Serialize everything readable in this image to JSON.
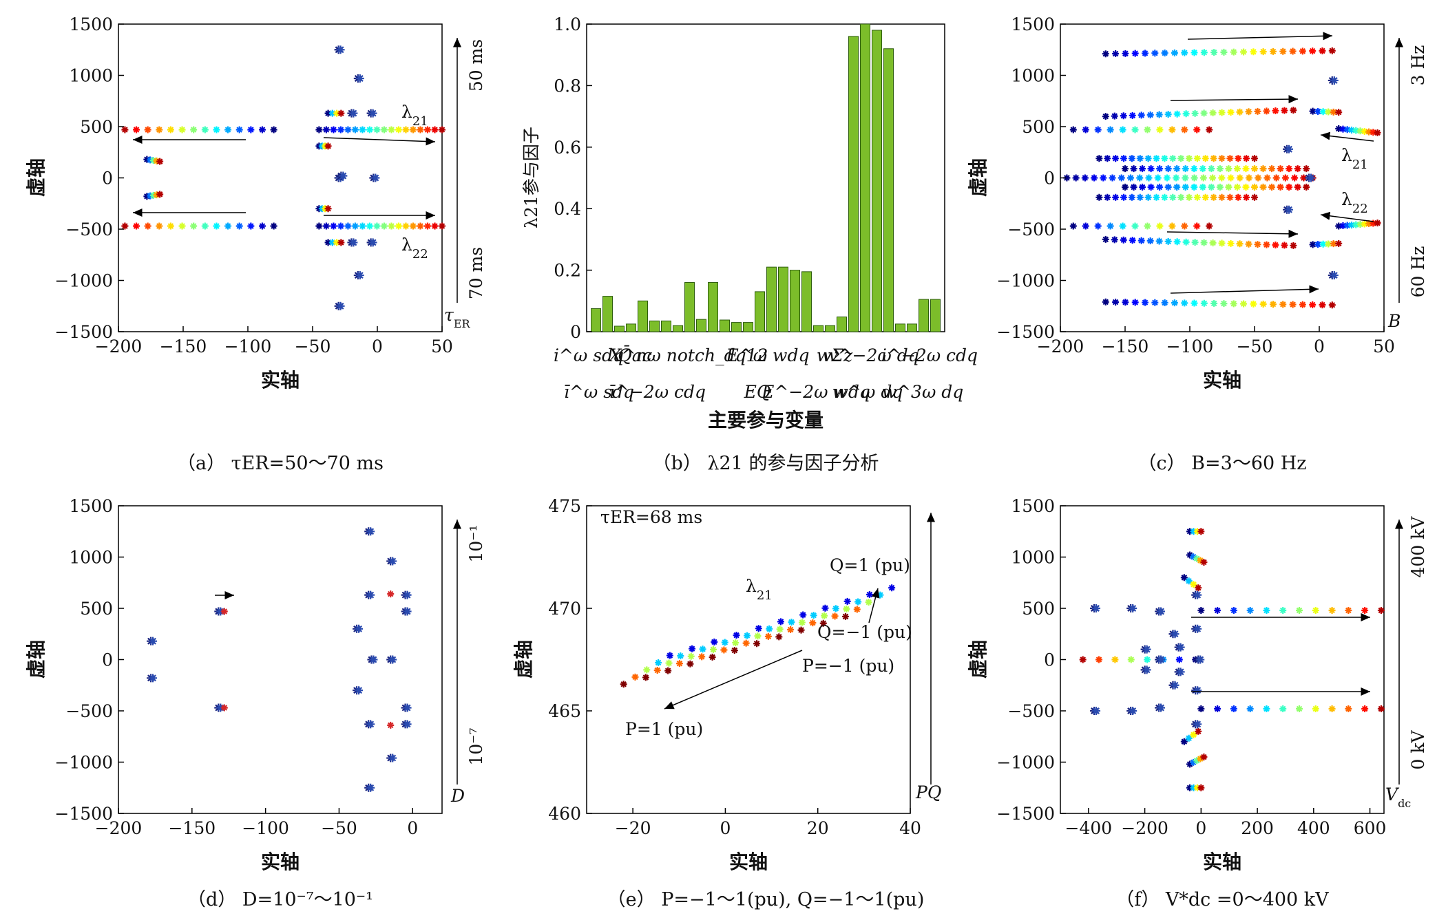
{
  "captions": {
    "a": "（a） τER=50～70 ms",
    "b": "（b） λ21 的参与因子分析",
    "c": "（c） B=3～60 Hz",
    "d": "（d） D=10⁻⁷～10⁻¹",
    "e": "（e） P=−1～1(pu), Q=−1～1(pu)",
    "f": "（f） V*dc =0～400 kV"
  },
  "colors": {
    "low": "#1a237e",
    "high": "#d62728",
    "bar": "#7cbd2a",
    "bar_edge": "#2e5e0e"
  },
  "chart_data": [
    {
      "id": "a",
      "type": "scatter",
      "xlabel": "实轴",
      "ylabel": "虚轴",
      "xlim": [
        -200,
        50
      ],
      "ylim": [
        -1500,
        1500
      ],
      "xticks": [
        "−200",
        "−150",
        "−100",
        "−50",
        "0",
        "50"
      ],
      "yticks": [
        "1500",
        "1000",
        "500",
        "0",
        "−500",
        "−1000",
        "−1500"
      ],
      "side_top": "50 ms",
      "side_bottom": "70 ms",
      "side_end": "τER",
      "annotations": [
        "λ21",
        "λ22"
      ],
      "sweeps": [
        {
          "from": [
            -80,
            470
          ],
          "to": [
            -195,
            470
          ],
          "n": 14
        },
        {
          "from": [
            -80,
            -470
          ],
          "to": [
            -195,
            -470
          ],
          "n": 14
        },
        {
          "from": [
            -45,
            470
          ],
          "to": [
            50,
            470
          ],
          "n": 18
        },
        {
          "from": [
            -45,
            -470
          ],
          "to": [
            50,
            -470
          ],
          "n": 18
        },
        {
          "from": [
            -178,
            180
          ],
          "to": [
            -168,
            160
          ],
          "n": 5
        },
        {
          "from": [
            -178,
            -180
          ],
          "to": [
            -168,
            -160
          ],
          "n": 5
        },
        {
          "from": [
            -45,
            310
          ],
          "to": [
            -38,
            310
          ],
          "n": 4
        },
        {
          "from": [
            -45,
            -300
          ],
          "to": [
            -38,
            -300
          ],
          "n": 4
        },
        {
          "from": [
            -38,
            630
          ],
          "to": [
            -28,
            630
          ],
          "n": 4
        },
        {
          "from": [
            -38,
            -630
          ],
          "to": [
            -28,
            -630
          ],
          "n": 4
        }
      ],
      "dots": [
        [
          -30,
          1250
        ],
        [
          -30,
          -1250
        ],
        [
          -15,
          970
        ],
        [
          -15,
          -950
        ],
        [
          -30,
          0
        ],
        [
          -28,
          20
        ],
        [
          -3,
          0
        ],
        [
          -5,
          630
        ],
        [
          -5,
          -630
        ],
        [
          -20,
          630
        ],
        [
          -20,
          -630
        ]
      ]
    },
    {
      "id": "b",
      "type": "bar",
      "ylabel": "λ21参与因子",
      "xlabel": "主要参与变量",
      "ylim": [
        0,
        1
      ],
      "yticks": [
        "0",
        "0.2",
        "0.4",
        "0.6",
        "0.8",
        "1.0"
      ],
      "values": [
        0.075,
        0.115,
        0.018,
        0.025,
        0.1,
        0.035,
        0.035,
        0.02,
        0.16,
        0.04,
        0.16,
        0.038,
        0.03,
        0.03,
        0.13,
        0.21,
        0.21,
        0.2,
        0.195,
        0.02,
        0.02,
        0.048,
        0.96,
        1.0,
        0.98,
        0.92,
        0.025,
        0.025,
        0.105,
        0.105
      ],
      "labels_row1": [
        "i^ω sdq",
        "Q̄ac",
        "X^nω notch_dq12",
        "E^ω wdq",
        "wΣz",
        "w^−2ω dq",
        "i^−2ω cdq"
      ],
      "labels_row2": [
        "ī^ω sdq",
        "ī^−2ω cdq",
        "EQ",
        "E^−2ω wdq",
        "w^ω dq",
        "w^3ω dq"
      ]
    },
    {
      "id": "c",
      "type": "scatter",
      "xlabel": "实轴",
      "ylabel": "虚轴",
      "xlim": [
        -200,
        50
      ],
      "ylim": [
        -1500,
        1500
      ],
      "xticks": [
        "−200",
        "−150",
        "−100",
        "−50",
        "0",
        "50"
      ],
      "yticks": [
        "1500",
        "1000",
        "500",
        "0",
        "−500",
        "−1000",
        "−1500"
      ],
      "side_top": "3 Hz",
      "side_bottom": "60 Hz",
      "side_end": "B",
      "annotations": [
        "λ21",
        "λ22"
      ],
      "sweeps": [
        {
          "from": [
            -165,
            1210
          ],
          "to": [
            10,
            1240
          ],
          "n": 24
        },
        {
          "from": [
            -165,
            -1210
          ],
          "to": [
            10,
            -1240
          ],
          "n": 24
        },
        {
          "from": [
            -165,
            600
          ],
          "to": [
            -20,
            660
          ],
          "n": 22
        },
        {
          "from": [
            -165,
            -600
          ],
          "to": [
            -20,
            -660
          ],
          "n": 22
        },
        {
          "from": [
            -190,
            470
          ],
          "to": [
            -85,
            470
          ],
          "n": 12
        },
        {
          "from": [
            -190,
            -470
          ],
          "to": [
            -85,
            -470
          ],
          "n": 12
        },
        {
          "from": [
            -170,
            190
          ],
          "to": [
            -50,
            190
          ],
          "n": 20
        },
        {
          "from": [
            -170,
            -190
          ],
          "to": [
            -50,
            -190
          ],
          "n": 20
        },
        {
          "from": [
            -150,
            90
          ],
          "to": [
            -10,
            90
          ],
          "n": 22
        },
        {
          "from": [
            -150,
            -90
          ],
          "to": [
            -10,
            -90
          ],
          "n": 22
        },
        {
          "from": [
            -195,
            0
          ],
          "to": [
            -5,
            0
          ],
          "n": 28
        },
        {
          "from": [
            -5,
            650
          ],
          "to": [
            15,
            640
          ],
          "n": 6
        },
        {
          "from": [
            -5,
            -650
          ],
          "to": [
            15,
            -640
          ],
          "n": 6
        },
        {
          "from": [
            15,
            480
          ],
          "to": [
            45,
            440
          ],
          "n": 10
        },
        {
          "from": [
            15,
            -470
          ],
          "to": [
            45,
            -440
          ],
          "n": 10
        }
      ],
      "dots": [
        [
          -25,
          280
        ],
        [
          -25,
          -310
        ],
        [
          10,
          950
        ],
        [
          10,
          -950
        ],
        [
          -8,
          0
        ]
      ]
    },
    {
      "id": "d",
      "type": "scatter",
      "xlabel": "实轴",
      "ylabel": "虚轴",
      "xlim": [
        -200,
        20
      ],
      "ylim": [
        -1500,
        1500
      ],
      "xticks": [
        "−200",
        "−150",
        "−100",
        "−50",
        "0"
      ],
      "yticks": [
        "1500",
        "1000",
        "500",
        "0",
        "−500",
        "−1000",
        "−1500"
      ],
      "side_top": "10⁻¹",
      "side_bottom": "10⁻⁷",
      "side_end": "D",
      "dots": [
        [
          -178,
          180
        ],
        [
          -178,
          -180
        ],
        [
          -132,
          470
        ],
        [
          -132,
          -470
        ],
        [
          -30,
          1250
        ],
        [
          -30,
          -1250
        ],
        [
          -15,
          960
        ],
        [
          -15,
          -960
        ],
        [
          -30,
          630
        ],
        [
          -30,
          -630
        ],
        [
          -5,
          630
        ],
        [
          -5,
          -630
        ],
        [
          -5,
          470
        ],
        [
          -5,
          -470
        ],
        [
          -38,
          300
        ],
        [
          -38,
          -300
        ],
        [
          -28,
          0
        ],
        [
          -15,
          0
        ]
      ],
      "red_dots": [
        [
          -128,
          470
        ],
        [
          -128,
          -470
        ],
        [
          -15,
          640
        ],
        [
          -15,
          -640
        ]
      ]
    },
    {
      "id": "e",
      "type": "scatter",
      "xlabel": "实轴",
      "ylabel": "虚轴",
      "xlim": [
        -30,
        40
      ],
      "ylim": [
        460,
        475
      ],
      "xticks": [
        "−20",
        "0",
        "20",
        "40"
      ],
      "yticks": [
        "475",
        "470",
        "465",
        "460"
      ],
      "side_end": "PQ",
      "annotations": [
        "τER=68 ms",
        "λ21",
        "Q=1 (pu)",
        "Q=−1 (pu)",
        "P=−1 (pu)",
        "P=1 (pu)"
      ],
      "rows": 11,
      "row_start": [
        -22,
        466.3
      ],
      "row_end": [
        -2,
        467.2
      ],
      "row_step": [
        4.8,
        0.33
      ]
    },
    {
      "id": "f",
      "type": "scatter",
      "xlabel": "实轴",
      "ylabel": "虚轴",
      "xlim": [
        -500,
        650
      ],
      "ylim": [
        -1500,
        1500
      ],
      "xticks": [
        "−400",
        "−200",
        "0",
        "200",
        "400",
        "600"
      ],
      "yticks": [
        "1500",
        "1000",
        "500",
        "0",
        "−500",
        "−1000",
        "−1500"
      ],
      "side_top": "400 kV",
      "side_bottom": "0 kV",
      "side_end": "Vdc",
      "sweeps": [
        {
          "from": [
            0,
            480
          ],
          "to": [
            640,
            480
          ],
          "n": 12
        },
        {
          "from": [
            0,
            -480
          ],
          "to": [
            640,
            -480
          ],
          "n": 12
        },
        {
          "from": [
            -20,
            0
          ],
          "to": [
            -420,
            0
          ],
          "n": 8
        },
        {
          "from": [
            -40,
            1250
          ],
          "to": [
            0,
            1250
          ],
          "n": 4
        },
        {
          "from": [
            -40,
            -1250
          ],
          "to": [
            0,
            -1250
          ],
          "n": 4
        },
        {
          "from": [
            -40,
            1020
          ],
          "to": [
            10,
            950
          ],
          "n": 5
        },
        {
          "from": [
            -40,
            -1020
          ],
          "to": [
            10,
            -950
          ],
          "n": 5
        },
        {
          "from": [
            -60,
            800
          ],
          "to": [
            -10,
            700
          ],
          "n": 4
        },
        {
          "from": [
            -60,
            -800
          ],
          "to": [
            -10,
            -700
          ],
          "n": 4
        }
      ],
      "dots": [
        [
          -380,
          500
        ],
        [
          -380,
          -500
        ],
        [
          -250,
          500
        ],
        [
          -250,
          -500
        ],
        [
          -150,
          470
        ],
        [
          -150,
          -470
        ],
        [
          -100,
          250
        ],
        [
          -100,
          -250
        ],
        [
          -200,
          100
        ],
        [
          -200,
          -100
        ],
        [
          -150,
          0
        ],
        [
          -80,
          120
        ],
        [
          -80,
          -120
        ],
        [
          -20,
          630
        ],
        [
          -20,
          -630
        ],
        [
          -10,
          0
        ],
        [
          -20,
          300
        ],
        [
          -20,
          -300
        ]
      ]
    }
  ]
}
